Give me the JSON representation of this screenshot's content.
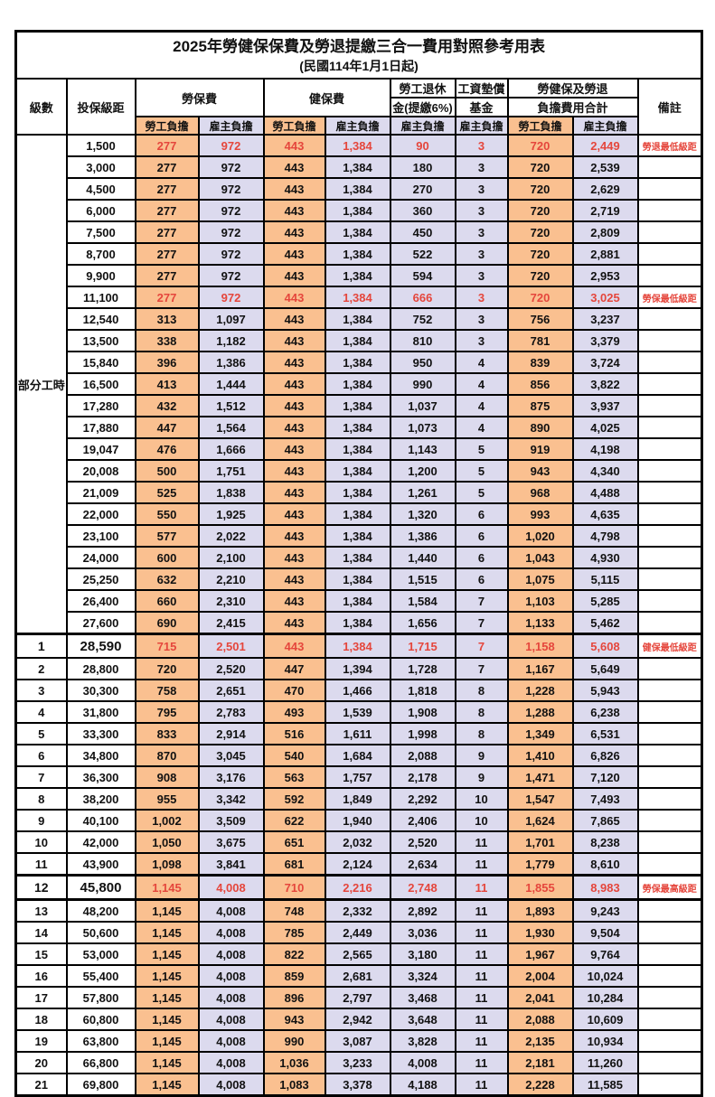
{
  "title": "2025年勞健保保費及勞退提繳三合一費用對照參考用表",
  "subtitle": "(民國114年1月1日起)",
  "colors": {
    "employee_column": "#fac090",
    "employer_column": "#dcdaee",
    "red_highlight": "#e5463c"
  },
  "header": {
    "level": "級數",
    "bracket": "投保級距",
    "labor_fee": "勞保費",
    "health_fee": "健保費",
    "pension": [
      "勞工退休",
      "金(提繳6%)"
    ],
    "wage_fund": [
      "工資墊償",
      "基金"
    ],
    "total": [
      "勞健保及勞退",
      "負擔費用合計"
    ],
    "remark": "備註",
    "employee": "勞工負擔",
    "employer": "雇主負擔"
  },
  "table": {
    "part_time_label": "部分工時",
    "part_time_rowspan": 23,
    "rows": [
      {
        "level": "",
        "bracket": "1,500",
        "values": [
          "277",
          "972",
          "443",
          "1,384",
          "90",
          "3",
          "720",
          "2,449"
        ],
        "remark": "勞退最低級距",
        "red": true
      },
      {
        "level": "",
        "bracket": "3,000",
        "values": [
          "277",
          "972",
          "443",
          "1,384",
          "180",
          "3",
          "720",
          "2,539"
        ],
        "remark": ""
      },
      {
        "level": "",
        "bracket": "4,500",
        "values": [
          "277",
          "972",
          "443",
          "1,384",
          "270",
          "3",
          "720",
          "2,629"
        ],
        "remark": ""
      },
      {
        "level": "",
        "bracket": "6,000",
        "values": [
          "277",
          "972",
          "443",
          "1,384",
          "360",
          "3",
          "720",
          "2,719"
        ],
        "remark": ""
      },
      {
        "level": "",
        "bracket": "7,500",
        "values": [
          "277",
          "972",
          "443",
          "1,384",
          "450",
          "3",
          "720",
          "2,809"
        ],
        "remark": ""
      },
      {
        "level": "",
        "bracket": "8,700",
        "values": [
          "277",
          "972",
          "443",
          "1,384",
          "522",
          "3",
          "720",
          "2,881"
        ],
        "remark": ""
      },
      {
        "level": "",
        "bracket": "9,900",
        "values": [
          "277",
          "972",
          "443",
          "1,384",
          "594",
          "3",
          "720",
          "2,953"
        ],
        "remark": ""
      },
      {
        "level": "",
        "bracket": "11,100",
        "values": [
          "277",
          "972",
          "443",
          "1,384",
          "666",
          "3",
          "720",
          "3,025"
        ],
        "remark": "勞保最低級距",
        "red": true
      },
      {
        "level": "",
        "bracket": "12,540",
        "values": [
          "313",
          "1,097",
          "443",
          "1,384",
          "752",
          "3",
          "756",
          "3,237"
        ],
        "remark": ""
      },
      {
        "level": "",
        "bracket": "13,500",
        "values": [
          "338",
          "1,182",
          "443",
          "1,384",
          "810",
          "3",
          "781",
          "3,379"
        ],
        "remark": ""
      },
      {
        "level": "",
        "bracket": "15,840",
        "values": [
          "396",
          "1,386",
          "443",
          "1,384",
          "950",
          "4",
          "839",
          "3,724"
        ],
        "remark": ""
      },
      {
        "level": "",
        "bracket": "16,500",
        "values": [
          "413",
          "1,444",
          "443",
          "1,384",
          "990",
          "4",
          "856",
          "3,822"
        ],
        "remark": ""
      },
      {
        "level": "",
        "bracket": "17,280",
        "values": [
          "432",
          "1,512",
          "443",
          "1,384",
          "1,037",
          "4",
          "875",
          "3,937"
        ],
        "remark": ""
      },
      {
        "level": "",
        "bracket": "17,880",
        "values": [
          "447",
          "1,564",
          "443",
          "1,384",
          "1,073",
          "4",
          "890",
          "4,025"
        ],
        "remark": ""
      },
      {
        "level": "",
        "bracket": "19,047",
        "values": [
          "476",
          "1,666",
          "443",
          "1,384",
          "1,143",
          "5",
          "919",
          "4,198"
        ],
        "remark": ""
      },
      {
        "level": "",
        "bracket": "20,008",
        "values": [
          "500",
          "1,751",
          "443",
          "1,384",
          "1,200",
          "5",
          "943",
          "4,340"
        ],
        "remark": ""
      },
      {
        "level": "",
        "bracket": "21,009",
        "values": [
          "525",
          "1,838",
          "443",
          "1,384",
          "1,261",
          "5",
          "968",
          "4,488"
        ],
        "remark": ""
      },
      {
        "level": "",
        "bracket": "22,000",
        "values": [
          "550",
          "1,925",
          "443",
          "1,384",
          "1,320",
          "6",
          "993",
          "4,635"
        ],
        "remark": ""
      },
      {
        "level": "",
        "bracket": "23,100",
        "values": [
          "577",
          "2,022",
          "443",
          "1,384",
          "1,386",
          "6",
          "1,020",
          "4,798"
        ],
        "remark": ""
      },
      {
        "level": "",
        "bracket": "24,000",
        "values": [
          "600",
          "2,100",
          "443",
          "1,384",
          "1,440",
          "6",
          "1,043",
          "4,930"
        ],
        "remark": ""
      },
      {
        "level": "",
        "bracket": "25,250",
        "values": [
          "632",
          "2,210",
          "443",
          "1,384",
          "1,515",
          "6",
          "1,075",
          "5,115"
        ],
        "remark": ""
      },
      {
        "level": "",
        "bracket": "26,400",
        "values": [
          "660",
          "2,310",
          "443",
          "1,384",
          "1,584",
          "7",
          "1,103",
          "5,285"
        ],
        "remark": ""
      },
      {
        "level": "",
        "bracket": "27,600",
        "values": [
          "690",
          "2,415",
          "443",
          "1,384",
          "1,656",
          "7",
          "1,133",
          "5,462"
        ],
        "remark": ""
      },
      {
        "level": "1",
        "bracket": "28,590",
        "values": [
          "715",
          "2,501",
          "443",
          "1,384",
          "1,715",
          "7",
          "1,158",
          "5,608"
        ],
        "remark": "健保最低級距",
        "red": true,
        "bold": true,
        "thick_top": true
      },
      {
        "level": "2",
        "bracket": "28,800",
        "values": [
          "720",
          "2,520",
          "447",
          "1,394",
          "1,728",
          "7",
          "1,167",
          "5,649"
        ],
        "remark": ""
      },
      {
        "level": "3",
        "bracket": "30,300",
        "values": [
          "758",
          "2,651",
          "470",
          "1,466",
          "1,818",
          "8",
          "1,228",
          "5,943"
        ],
        "remark": ""
      },
      {
        "level": "4",
        "bracket": "31,800",
        "values": [
          "795",
          "2,783",
          "493",
          "1,539",
          "1,908",
          "8",
          "1,288",
          "6,238"
        ],
        "remark": ""
      },
      {
        "level": "5",
        "bracket": "33,300",
        "values": [
          "833",
          "2,914",
          "516",
          "1,611",
          "1,998",
          "8",
          "1,349",
          "6,531"
        ],
        "remark": ""
      },
      {
        "level": "6",
        "bracket": "34,800",
        "values": [
          "870",
          "3,045",
          "540",
          "1,684",
          "2,088",
          "9",
          "1,410",
          "6,826"
        ],
        "remark": ""
      },
      {
        "level": "7",
        "bracket": "36,300",
        "values": [
          "908",
          "3,176",
          "563",
          "1,757",
          "2,178",
          "9",
          "1,471",
          "7,120"
        ],
        "remark": ""
      },
      {
        "level": "8",
        "bracket": "38,200",
        "values": [
          "955",
          "3,342",
          "592",
          "1,849",
          "2,292",
          "10",
          "1,547",
          "7,493"
        ],
        "remark": ""
      },
      {
        "level": "9",
        "bracket": "40,100",
        "values": [
          "1,002",
          "3,509",
          "622",
          "1,940",
          "2,406",
          "10",
          "1,624",
          "7,865"
        ],
        "remark": ""
      },
      {
        "level": "10",
        "bracket": "42,000",
        "values": [
          "1,050",
          "3,675",
          "651",
          "2,032",
          "2,520",
          "11",
          "1,701",
          "8,238"
        ],
        "remark": ""
      },
      {
        "level": "11",
        "bracket": "43,900",
        "values": [
          "1,098",
          "3,841",
          "681",
          "2,124",
          "2,634",
          "11",
          "1,779",
          "8,610"
        ],
        "remark": ""
      },
      {
        "level": "12",
        "bracket": "45,800",
        "values": [
          "1,145",
          "4,008",
          "710",
          "2,216",
          "2,748",
          "11",
          "1,855",
          "8,983"
        ],
        "remark": "勞保最高級距",
        "red": true,
        "bold": true,
        "thick_top": true,
        "thick_bottom": true
      },
      {
        "level": "13",
        "bracket": "48,200",
        "values": [
          "1,145",
          "4,008",
          "748",
          "2,332",
          "2,892",
          "11",
          "1,893",
          "9,243"
        ],
        "remark": ""
      },
      {
        "level": "14",
        "bracket": "50,600",
        "values": [
          "1,145",
          "4,008",
          "785",
          "2,449",
          "3,036",
          "11",
          "1,930",
          "9,504"
        ],
        "remark": ""
      },
      {
        "level": "15",
        "bracket": "53,000",
        "values": [
          "1,145",
          "4,008",
          "822",
          "2,565",
          "3,180",
          "11",
          "1,967",
          "9,764"
        ],
        "remark": ""
      },
      {
        "level": "16",
        "bracket": "55,400",
        "values": [
          "1,145",
          "4,008",
          "859",
          "2,681",
          "3,324",
          "11",
          "2,004",
          "10,024"
        ],
        "remark": ""
      },
      {
        "level": "17",
        "bracket": "57,800",
        "values": [
          "1,145",
          "4,008",
          "896",
          "2,797",
          "3,468",
          "11",
          "2,041",
          "10,284"
        ],
        "remark": ""
      },
      {
        "level": "18",
        "bracket": "60,800",
        "values": [
          "1,145",
          "4,008",
          "943",
          "2,942",
          "3,648",
          "11",
          "2,088",
          "10,609"
        ],
        "remark": ""
      },
      {
        "level": "19",
        "bracket": "63,800",
        "values": [
          "1,145",
          "4,008",
          "990",
          "3,087",
          "3,828",
          "11",
          "2,135",
          "10,934"
        ],
        "remark": ""
      },
      {
        "level": "20",
        "bracket": "66,800",
        "values": [
          "1,145",
          "4,008",
          "1,036",
          "3,233",
          "4,008",
          "11",
          "2,181",
          "11,260"
        ],
        "remark": ""
      },
      {
        "level": "21",
        "bracket": "69,800",
        "values": [
          "1,145",
          "4,008",
          "1,083",
          "3,378",
          "4,188",
          "11",
          "2,228",
          "11,585"
        ],
        "remark": ""
      }
    ]
  }
}
